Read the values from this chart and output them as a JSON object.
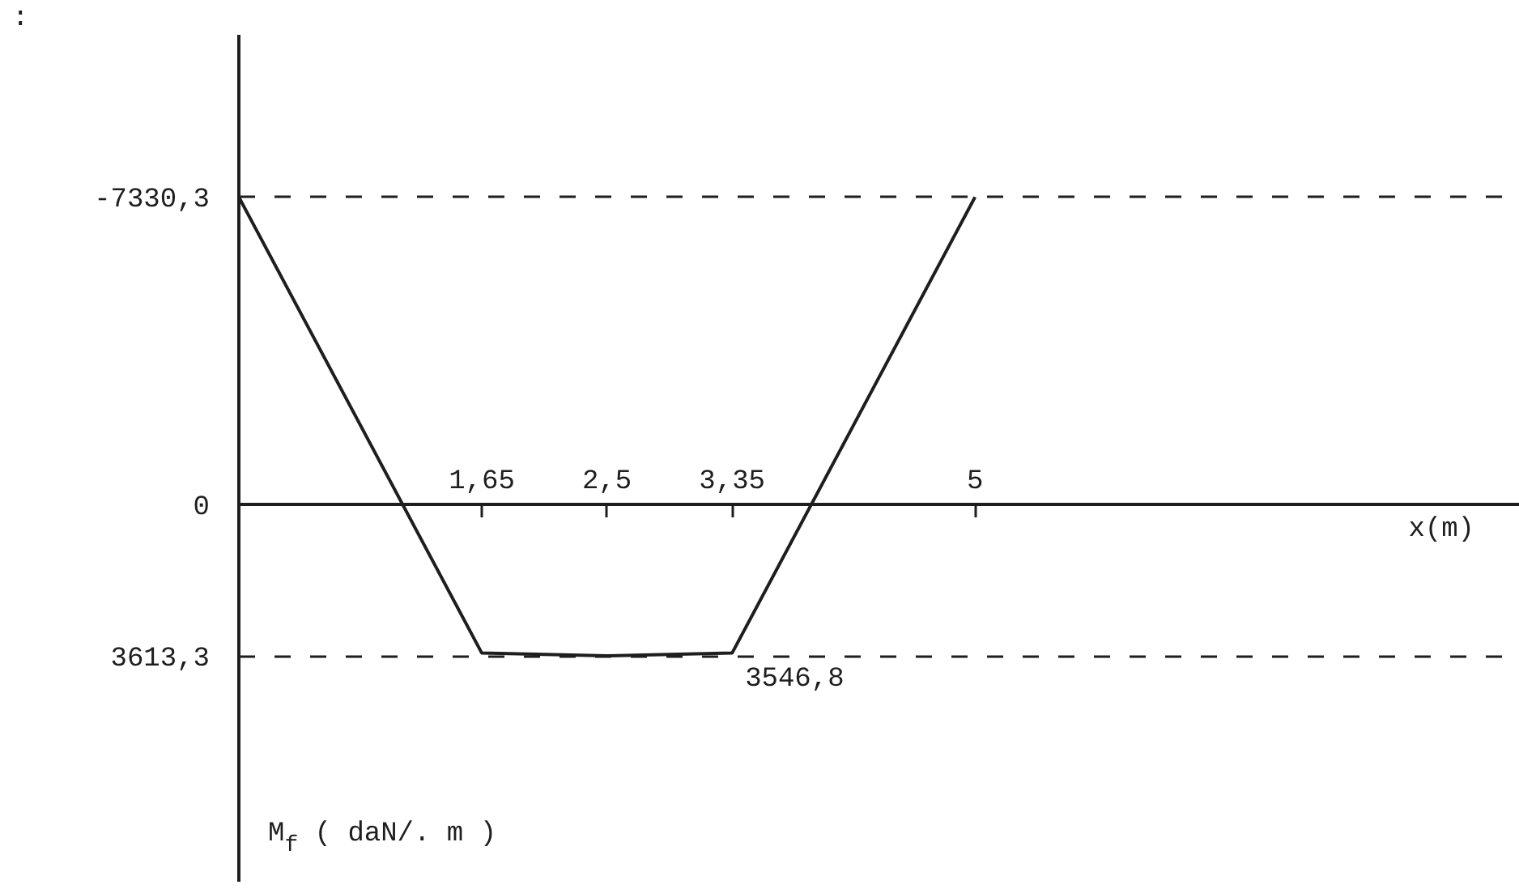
{
  "chart_data": {
    "type": "line",
    "title": ":",
    "xlabel": "x(m)",
    "ylabel": "M$_{f}$ ( daN/. m )",
    "x": [
      0,
      1.65,
      2.5,
      3.35,
      5
    ],
    "series": [
      {
        "color": "#1e1e1e",
        "values": [
          -7330.3,
          3546.8,
          3613.3,
          3546.8,
          -7330.3
        ]
      }
    ],
    "xlim": [
      0,
      8.7
    ],
    "xticks": [
      {
        "value": 1.65,
        "label": "1,65"
      },
      {
        "value": 2.5,
        "label": "2,5"
      },
      {
        "value": 3.35,
        "label": "3,35"
      },
      5
    ],
    "ylim": [
      9000,
      -11200
    ],
    "yticks": [
      {
        "value": -7330.3,
        "label": "-7330,3"
      },
      0,
      {
        "value": 3613.3,
        "label": "3613,3"
      }
    ],
    "annotations": [
      {
        "text": "3546,8",
        "x": 3.35,
        "y": 3546.8
      }
    ],
    "grid": "y"
  }
}
